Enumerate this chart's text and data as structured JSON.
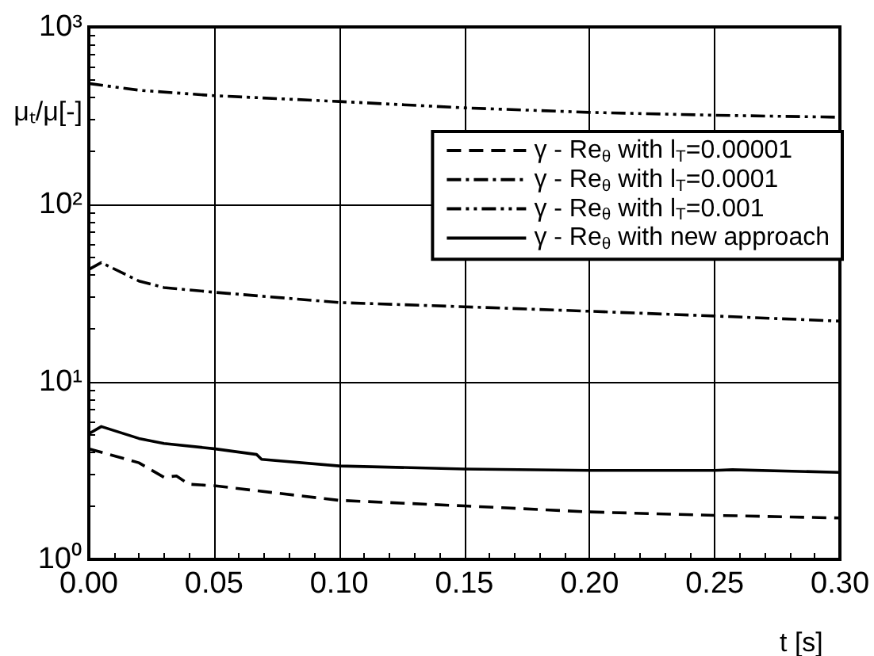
{
  "chart_data": {
    "type": "line",
    "xlabel": "t [s]",
    "ylabel": "μₜ/μ[-]",
    "xlim": [
      0,
      0.3
    ],
    "xticks": [
      {
        "value": 0,
        "label": "0.00"
      },
      {
        "value": 0.05,
        "label": "0.05"
      },
      {
        "value": 0.1,
        "label": "0.10"
      },
      {
        "value": 0.15,
        "label": "0.15"
      },
      {
        "value": 0.2,
        "label": "0.20"
      },
      {
        "value": 0.25,
        "label": "0.25"
      },
      {
        "value": 0.3,
        "label": "0.30"
      }
    ],
    "ylim": [
      1,
      1000
    ],
    "yticks": [
      {
        "value": 1,
        "label": "10⁰"
      },
      {
        "value": 10,
        "label": "10¹"
      },
      {
        "value": 100,
        "label": "10²"
      },
      {
        "value": 1000,
        "label": "10³"
      }
    ],
    "log": "y",
    "grid": true,
    "legend": "top right",
    "marker": "none",
    "series": [
      {
        "name": "γ - Re$_{θ}$ with l$_{T}$=0.00001",
        "color": "#000000",
        "line_style": "dashed",
        "x": [
          0,
          0.02,
          0.03,
          0.035,
          0.04,
          0.05,
          0.1,
          0.15,
          0.2,
          0.25,
          0.3
        ],
        "values": [
          4.2,
          3.5,
          2.9,
          2.95,
          2.65,
          2.6,
          2.15,
          2.0,
          1.85,
          1.77,
          1.71
        ]
      },
      {
        "name": "γ - Re$_{θ}$ with l$_{T}$=0.0001",
        "color": "#000000",
        "line_style": "dashdot",
        "x": [
          0,
          0.005,
          0.02,
          0.03,
          0.05,
          0.1,
          0.15,
          0.2,
          0.25,
          0.3
        ],
        "values": [
          43,
          47,
          37,
          34,
          32,
          28,
          26.5,
          25,
          23.5,
          22
        ]
      },
      {
        "name": "γ - Re$_{θ}$ with l$_{T}$=0.001",
        "color": "#000000",
        "line_style": "dashdotdot",
        "x": [
          0,
          0.02,
          0.05,
          0.1,
          0.15,
          0.2,
          0.25,
          0.3
        ],
        "values": [
          480,
          440,
          410,
          380,
          350,
          330,
          318,
          310
        ]
      },
      {
        "name": "γ - Re$_{θ}$ with new approach",
        "color": "#000000",
        "line_style": "solid",
        "x": [
          0,
          0.005,
          0.02,
          0.03,
          0.05,
          0.067,
          0.069,
          0.1,
          0.15,
          0.2,
          0.25,
          0.257,
          0.3
        ],
        "values": [
          5.1,
          5.6,
          4.8,
          4.5,
          4.2,
          3.9,
          3.66,
          3.36,
          3.23,
          3.17,
          3.17,
          3.2,
          3.09
        ]
      }
    ]
  }
}
